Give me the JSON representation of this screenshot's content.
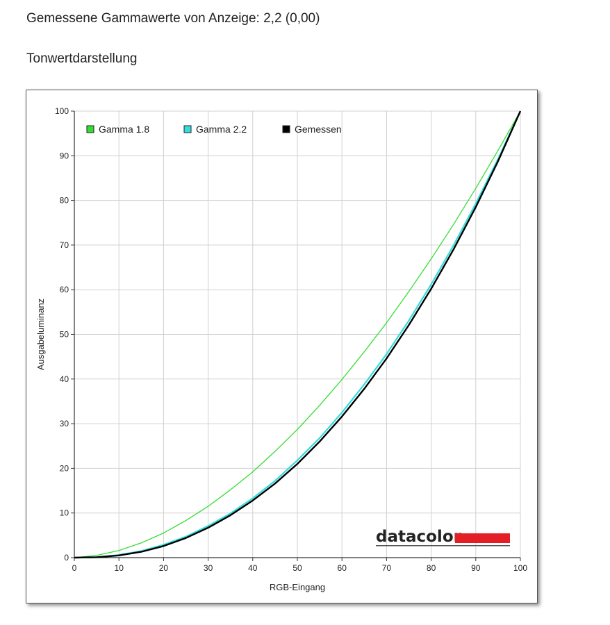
{
  "header": {
    "measured_gamma": "Gemessene Gammawerte von Anzeige: 2,2 (0,00)",
    "section_title": "Tonwertdarstellung"
  },
  "logo": {
    "text": "datacolor",
    "bar_color": "#e31e24"
  },
  "chart_data": {
    "type": "line",
    "xlabel": "RGB-Eingang",
    "ylabel": "Ausgabeluminanz",
    "xlim": [
      0,
      100
    ],
    "ylim": [
      0,
      100
    ],
    "xticks": [
      0,
      10,
      20,
      30,
      40,
      50,
      60,
      70,
      80,
      90,
      100
    ],
    "yticks": [
      0,
      10,
      20,
      30,
      40,
      50,
      60,
      70,
      80,
      90,
      100
    ],
    "grid": true,
    "legend_position": "top-left",
    "series": [
      {
        "name": "Gamma 1.8",
        "color": "#33dd33",
        "x": [
          0,
          5,
          10,
          15,
          20,
          25,
          30,
          35,
          40,
          45,
          50,
          55,
          60,
          65,
          70,
          75,
          80,
          85,
          90,
          95,
          100
        ],
        "y": [
          0,
          0.5,
          1.6,
          3.3,
          5.5,
          8.3,
          11.5,
          15.2,
          19.2,
          23.8,
          28.7,
          34.1,
          39.9,
          46.1,
          52.6,
          59.6,
          66.9,
          74.6,
          82.7,
          91.2,
          100
        ]
      },
      {
        "name": "Gamma 2.2",
        "color": "#33dddd",
        "x": [
          0,
          5,
          10,
          15,
          20,
          25,
          30,
          35,
          40,
          45,
          50,
          55,
          60,
          65,
          70,
          75,
          80,
          85,
          90,
          95,
          100
        ],
        "y": [
          0,
          0.1,
          0.6,
          1.5,
          2.9,
          4.7,
          7.1,
          9.9,
          13.3,
          17.2,
          21.8,
          26.8,
          32.5,
          38.8,
          45.6,
          53.1,
          61.2,
          69.9,
          79.3,
          89.3,
          100
        ]
      },
      {
        "name": "Gemessen",
        "color": "#000000",
        "x": [
          0,
          5,
          10,
          15,
          20,
          25,
          30,
          35,
          40,
          45,
          50,
          55,
          60,
          65,
          70,
          75,
          80,
          85,
          90,
          95,
          100
        ],
        "y": [
          0,
          0.1,
          0.5,
          1.3,
          2.6,
          4.4,
          6.7,
          9.5,
          12.8,
          16.6,
          21.0,
          26.0,
          31.6,
          37.8,
          44.6,
          52.1,
          60.2,
          69.0,
          78.5,
          88.8,
          100
        ]
      }
    ]
  }
}
